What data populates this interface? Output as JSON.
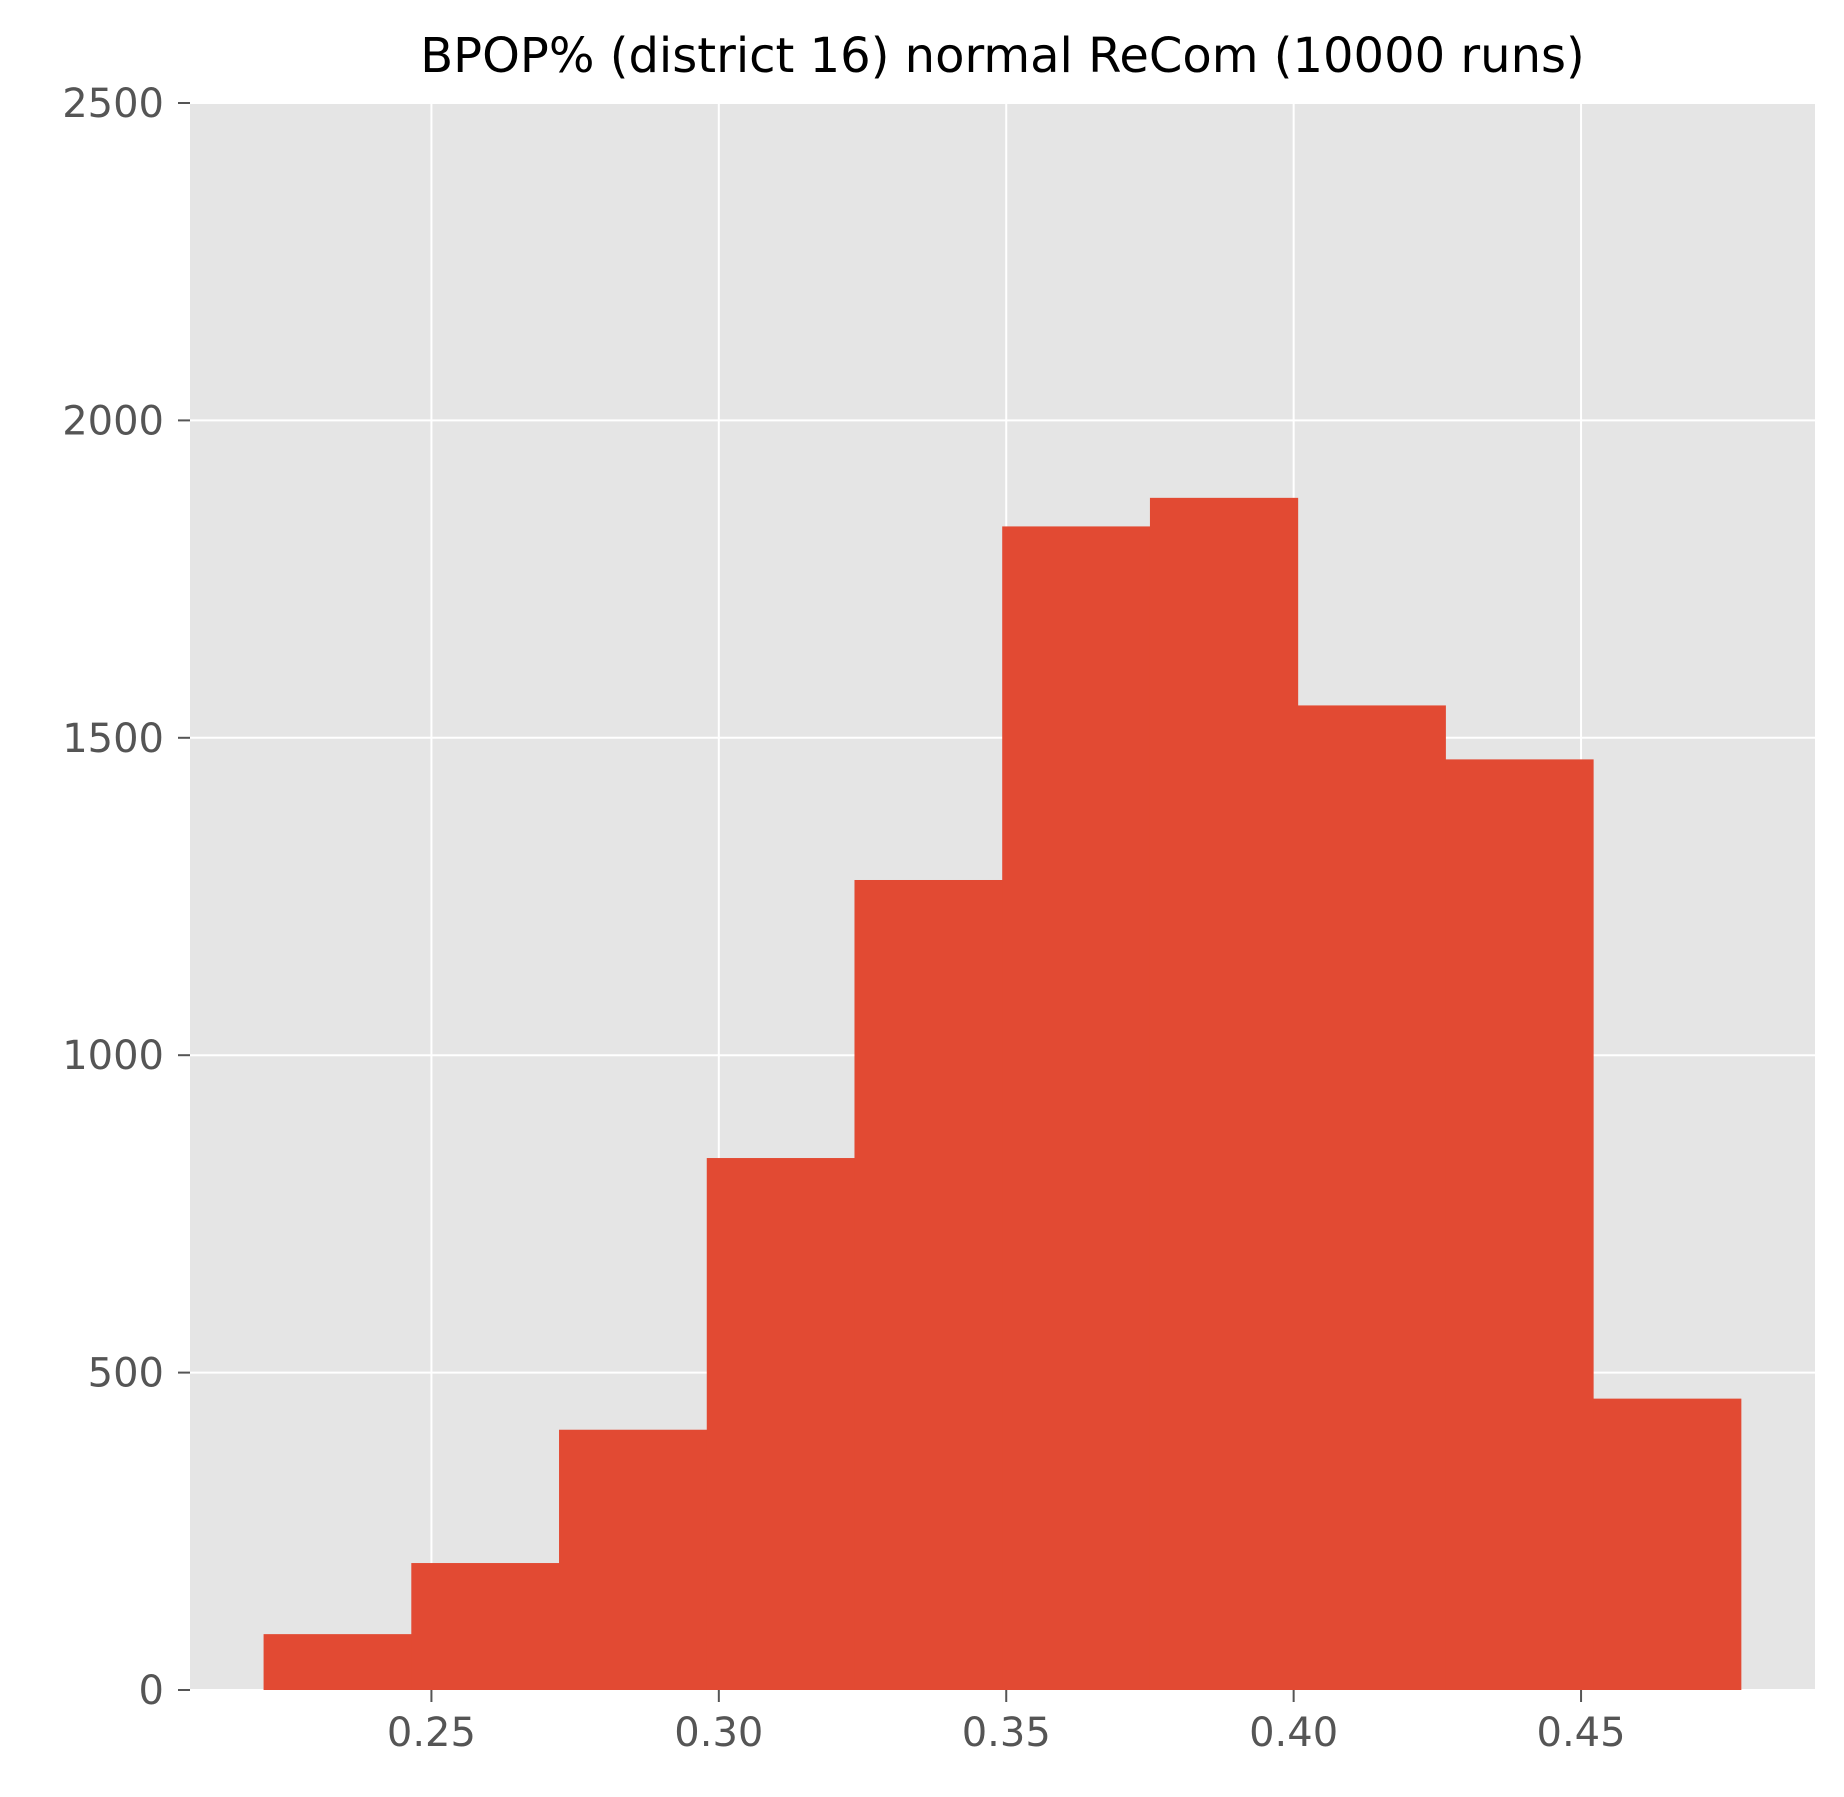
{
  "chart_data": {
    "type": "bar",
    "title": "BPOP% (district 16) normal ReCom (10000 runs)",
    "xlabel": "",
    "ylabel": "",
    "bin_edges": [
      0.2208,
      0.2465,
      0.2722,
      0.2979,
      0.3236,
      0.3493,
      0.375,
      0.4007,
      0.4264,
      0.4521,
      0.4778
    ],
    "values": [
      88,
      200,
      410,
      838,
      1276,
      1833,
      1878,
      1551,
      1466,
      459
    ],
    "xlim": [
      0.208,
      0.4907
    ],
    "ylim": [
      0,
      2500
    ],
    "xticks": [
      0.25,
      0.3,
      0.35,
      0.4,
      0.45
    ],
    "xtick_labels": [
      "0.25",
      "0.30",
      "0.35",
      "0.40",
      "0.45"
    ],
    "yticks": [
      0,
      500,
      1000,
      1500,
      2000,
      2500
    ],
    "ytick_labels": [
      "0",
      "500",
      "1000",
      "1500",
      "2000",
      "2500"
    ],
    "grid": true,
    "style": "ggplot",
    "colors": {
      "bar": "#E24A33",
      "plot_background": "#E5E5E5",
      "grid": "#FFFFFF",
      "tick_label": "#555555",
      "tick_mark": "#555555",
      "title": "#000000"
    }
  }
}
